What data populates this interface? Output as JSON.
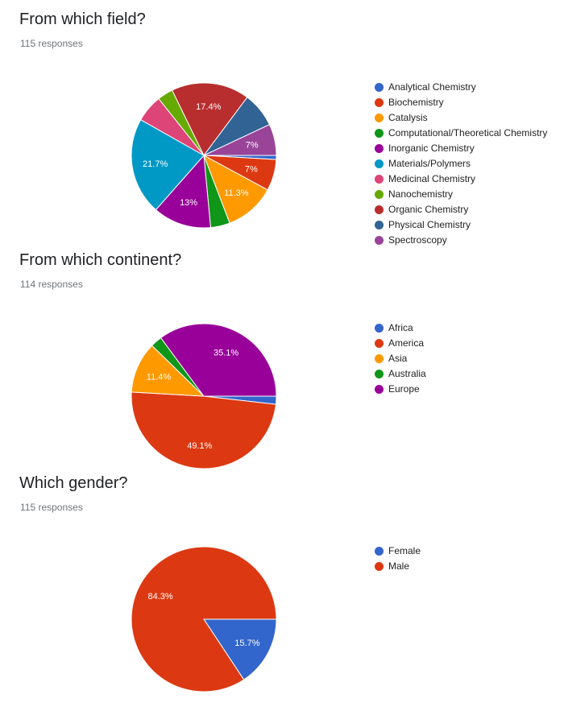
{
  "chart_data": [
    {
      "type": "pie",
      "title": "From which field?",
      "subtitle": "115 responses",
      "categories": [
        "Analytical Chemistry",
        "Biochemistry",
        "Catalysis",
        "Computational/Theoretical Chemistry",
        "Inorganic Chemistry",
        "Materials/Polymers",
        "Medicinal Chemistry",
        "Nanochemistry",
        "Organic Chemistry",
        "Physical Chemistry",
        "Spectroscopy"
      ],
      "values": [
        0.9,
        7,
        11.3,
        4.3,
        13,
        21.7,
        6.1,
        3.5,
        17.4,
        7.8,
        7
      ],
      "labels": [
        "",
        "7%",
        "11.3%",
        "",
        "13%",
        "21.7%",
        "",
        "",
        "17.4%",
        "",
        "7%"
      ],
      "colors": [
        "#3366cc",
        "#dc3912",
        "#ff9900",
        "#109618",
        "#990099",
        "#0099c6",
        "#dd4477",
        "#66aa00",
        "#b82e2e",
        "#316395",
        "#994499"
      ],
      "legend": "right"
    },
    {
      "type": "pie",
      "title": "From which continent?",
      "subtitle": "114 responses",
      "categories": [
        "Africa",
        "America",
        "Asia",
        "Australia",
        "Europe"
      ],
      "values": [
        1.8,
        49.1,
        11.4,
        2.6,
        35.1
      ],
      "labels": [
        "",
        "49.1%",
        "11.4%",
        "",
        "35.1%"
      ],
      "colors": [
        "#3366cc",
        "#dc3912",
        "#ff9900",
        "#109618",
        "#990099"
      ],
      "legend": "right"
    },
    {
      "type": "pie",
      "title": "Which gender?",
      "subtitle": "115 responses",
      "categories": [
        "Female",
        "Male"
      ],
      "values": [
        15.7,
        84.3
      ],
      "labels": [
        "15.7%",
        "84.3%"
      ],
      "colors": [
        "#3366cc",
        "#dc3912"
      ],
      "legend": "right"
    }
  ]
}
